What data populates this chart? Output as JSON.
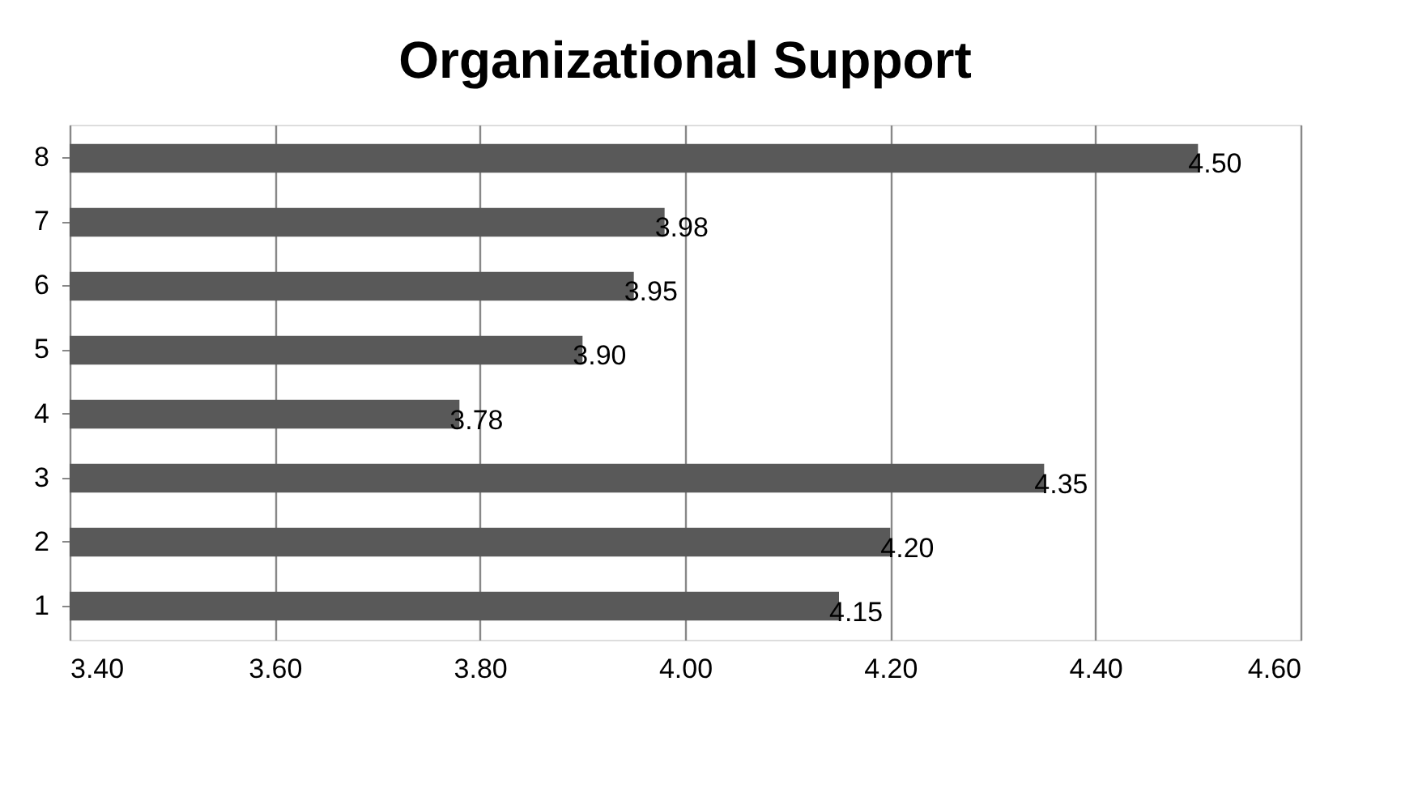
{
  "chart_data": {
    "type": "bar",
    "title": "Organizational Support",
    "orientation": "horizontal",
    "categories": [
      "8",
      "7",
      "6",
      "5",
      "4",
      "3",
      "2",
      "1"
    ],
    "values": [
      4.5,
      3.98,
      3.95,
      3.9,
      3.78,
      4.35,
      4.2,
      4.15
    ],
    "value_labels": [
      "4.50",
      "3.98",
      "3.95",
      "3.90",
      "3.78",
      "4.35",
      "4.20",
      "4.15"
    ],
    "color": "#595959",
    "xlim": [
      3.4,
      4.6
    ],
    "xticks": [
      {
        "value": 3.4,
        "label": "3.40"
      },
      {
        "value": 3.6,
        "label": "3.60"
      },
      {
        "value": 3.8,
        "label": "3.80"
      },
      {
        "value": 4.0,
        "label": "4.00"
      },
      {
        "value": 4.2,
        "label": "4.20"
      },
      {
        "value": 4.4,
        "label": "4.40"
      },
      {
        "value": 4.6,
        "label": "4.60"
      }
    ],
    "grid": "x"
  }
}
